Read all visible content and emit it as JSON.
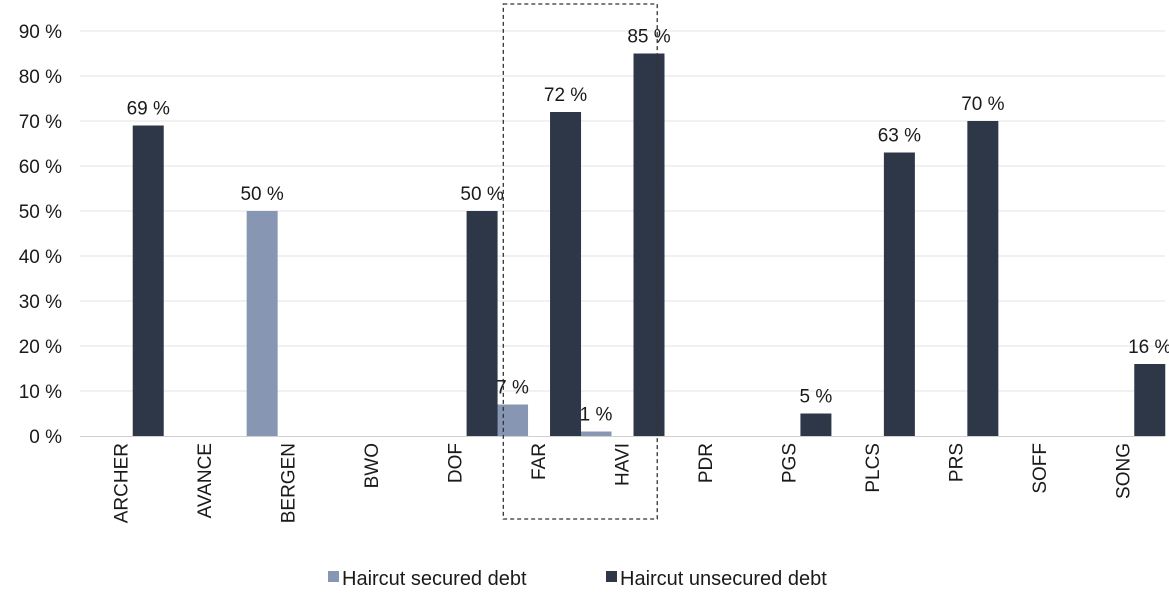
{
  "chart_data": {
    "type": "bar",
    "categories": [
      "ARCHER",
      "AVANCE",
      "BERGEN",
      "BWO",
      "DOF",
      "FAR",
      "HAVI",
      "PDR",
      "PGS",
      "PLCS",
      "PRS",
      "SOFF",
      "SONG"
    ],
    "series": [
      {
        "name": "Haircut secured debt",
        "color": "#8797b3",
        "values": [
          null,
          null,
          50,
          null,
          null,
          7,
          1,
          null,
          null,
          null,
          null,
          null,
          null
        ],
        "labels": [
          null,
          null,
          "50 %",
          null,
          null,
          "7 %",
          "1 %",
          null,
          null,
          null,
          null,
          null,
          null
        ]
      },
      {
        "name": "Haircut unsecured debt",
        "color": "#2d3748",
        "values": [
          69,
          null,
          null,
          null,
          50,
          72,
          85,
          null,
          5,
          63,
          70,
          null,
          16
        ],
        "labels": [
          "69 %",
          null,
          null,
          null,
          "50 %",
          "72 %",
          "85 %",
          null,
          "5 %",
          "63 %",
          "70 %",
          null,
          "16 %"
        ]
      }
    ],
    "ylim": [
      0,
      90
    ],
    "ytick_values": [
      0,
      10,
      20,
      30,
      40,
      50,
      60,
      70,
      80,
      90
    ],
    "yticks": [
      "0 %",
      "10 %",
      "20 %",
      "30 %",
      "40 %",
      "50 %",
      "60 %",
      "70 %",
      "80 %",
      "90 %"
    ],
    "grid": true,
    "legend_position": "bottom",
    "highlight_categories": [
      "FAR",
      "HAVI"
    ],
    "title": "",
    "xlabel": "",
    "ylabel": ""
  }
}
